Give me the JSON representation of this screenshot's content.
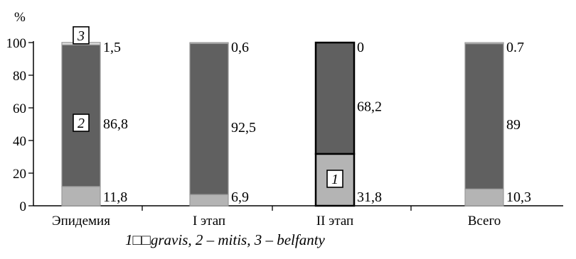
{
  "chart_data": {
    "type": "bar",
    "stacked": true,
    "y_unit_label": "%",
    "ylim": [
      0,
      100
    ],
    "yticks": [
      0,
      20,
      40,
      60,
      80,
      100
    ],
    "grid": false,
    "categories": [
      "Эпидемия",
      "I этап",
      "II этап",
      "Всего"
    ],
    "series": [
      {
        "key": "1",
        "values": [
          11.8,
          6.9,
          31.8,
          10.3
        ],
        "labels": [
          "11,8",
          "6,9",
          "31,8",
          "10,3"
        ],
        "color": "#b4b4b4"
      },
      {
        "key": "2",
        "values": [
          86.8,
          92.5,
          68.2,
          89
        ],
        "labels": [
          "86,8",
          "92,5",
          "68,2",
          "89"
        ],
        "color": "#606060"
      },
      {
        "key": "3",
        "values": [
          1.5,
          0.6,
          0,
          0.7
        ],
        "labels": [
          "1,5",
          "0,6",
          "0",
          "0.7"
        ],
        "color": "#dcdcdc"
      }
    ],
    "series_markers": [
      {
        "text": "3",
        "category": 0,
        "series": 2
      },
      {
        "text": "2",
        "category": 0,
        "series": 1
      },
      {
        "text": "1",
        "category": 2,
        "series": 0
      }
    ],
    "legend_caption": {
      "n1": "1",
      "sep1": "□□",
      "name1": "gravis",
      "sep2": ", 2 – ",
      "name2": "mitis",
      "sep3": ", 3 – ",
      "name3": "belfanty"
    }
  }
}
